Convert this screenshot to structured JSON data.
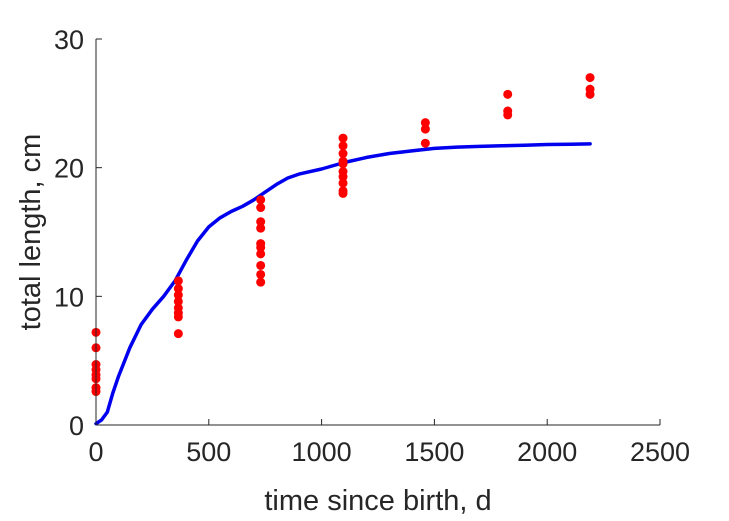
{
  "chart_data": {
    "type": "scatter",
    "xlabel": "time since birth, d",
    "ylabel": "total length, cm",
    "xlim": [
      0,
      2500
    ],
    "ylim": [
      0,
      30
    ],
    "xticks": [
      0,
      500,
      1000,
      1500,
      2000,
      2500
    ],
    "yticks": [
      0,
      10,
      20,
      30
    ],
    "grid": false,
    "series": [
      {
        "kind": "scatter",
        "color": "#ff0000",
        "points": [
          [
            0,
            7.2
          ],
          [
            0,
            6.0
          ],
          [
            0,
            4.7
          ],
          [
            0,
            4.3
          ],
          [
            0,
            3.9
          ],
          [
            0,
            3.6
          ],
          [
            0,
            2.9
          ],
          [
            0,
            2.6
          ],
          [
            365,
            11.2
          ],
          [
            365,
            10.6
          ],
          [
            365,
            10.1
          ],
          [
            365,
            9.6
          ],
          [
            365,
            9.1
          ],
          [
            365,
            8.7
          ],
          [
            365,
            8.4
          ],
          [
            365,
            7.1
          ],
          [
            730,
            17.5
          ],
          [
            730,
            16.9
          ],
          [
            730,
            15.8
          ],
          [
            730,
            15.3
          ],
          [
            730,
            14.1
          ],
          [
            730,
            13.8
          ],
          [
            730,
            13.3
          ],
          [
            730,
            12.4
          ],
          [
            730,
            11.7
          ],
          [
            730,
            11.1
          ],
          [
            1095,
            22.3
          ],
          [
            1095,
            21.7
          ],
          [
            1095,
            21.1
          ],
          [
            1095,
            20.5
          ],
          [
            1095,
            20.3
          ],
          [
            1095,
            19.7
          ],
          [
            1095,
            19.3
          ],
          [
            1095,
            18.8
          ],
          [
            1095,
            18.2
          ],
          [
            1095,
            18.0
          ],
          [
            1460,
            23.5
          ],
          [
            1460,
            23.0
          ],
          [
            1460,
            21.9
          ],
          [
            1825,
            25.7
          ],
          [
            1825,
            24.4
          ],
          [
            1825,
            24.1
          ],
          [
            2190,
            27.0
          ],
          [
            2190,
            26.1
          ],
          [
            2190,
            25.7
          ]
        ]
      },
      {
        "kind": "line",
        "color": "#0000ee",
        "points": [
          [
            0,
            0.1
          ],
          [
            25,
            0.4
          ],
          [
            50,
            1.0
          ],
          [
            75,
            2.5
          ],
          [
            100,
            3.8
          ],
          [
            150,
            6.0
          ],
          [
            200,
            7.8
          ],
          [
            250,
            9.0
          ],
          [
            300,
            10.0
          ],
          [
            350,
            11.2
          ],
          [
            400,
            12.8
          ],
          [
            450,
            14.3
          ],
          [
            500,
            15.4
          ],
          [
            550,
            16.1
          ],
          [
            600,
            16.6
          ],
          [
            650,
            17.0
          ],
          [
            700,
            17.5
          ],
          [
            750,
            18.1
          ],
          [
            800,
            18.7
          ],
          [
            850,
            19.2
          ],
          [
            900,
            19.5
          ],
          [
            1000,
            19.9
          ],
          [
            1100,
            20.4
          ],
          [
            1200,
            20.8
          ],
          [
            1300,
            21.1
          ],
          [
            1400,
            21.3
          ],
          [
            1500,
            21.5
          ],
          [
            1600,
            21.6
          ],
          [
            1700,
            21.65
          ],
          [
            1800,
            21.7
          ],
          [
            1900,
            21.75
          ],
          [
            2000,
            21.8
          ],
          [
            2100,
            21.82
          ],
          [
            2190,
            21.85
          ]
        ]
      }
    ]
  }
}
